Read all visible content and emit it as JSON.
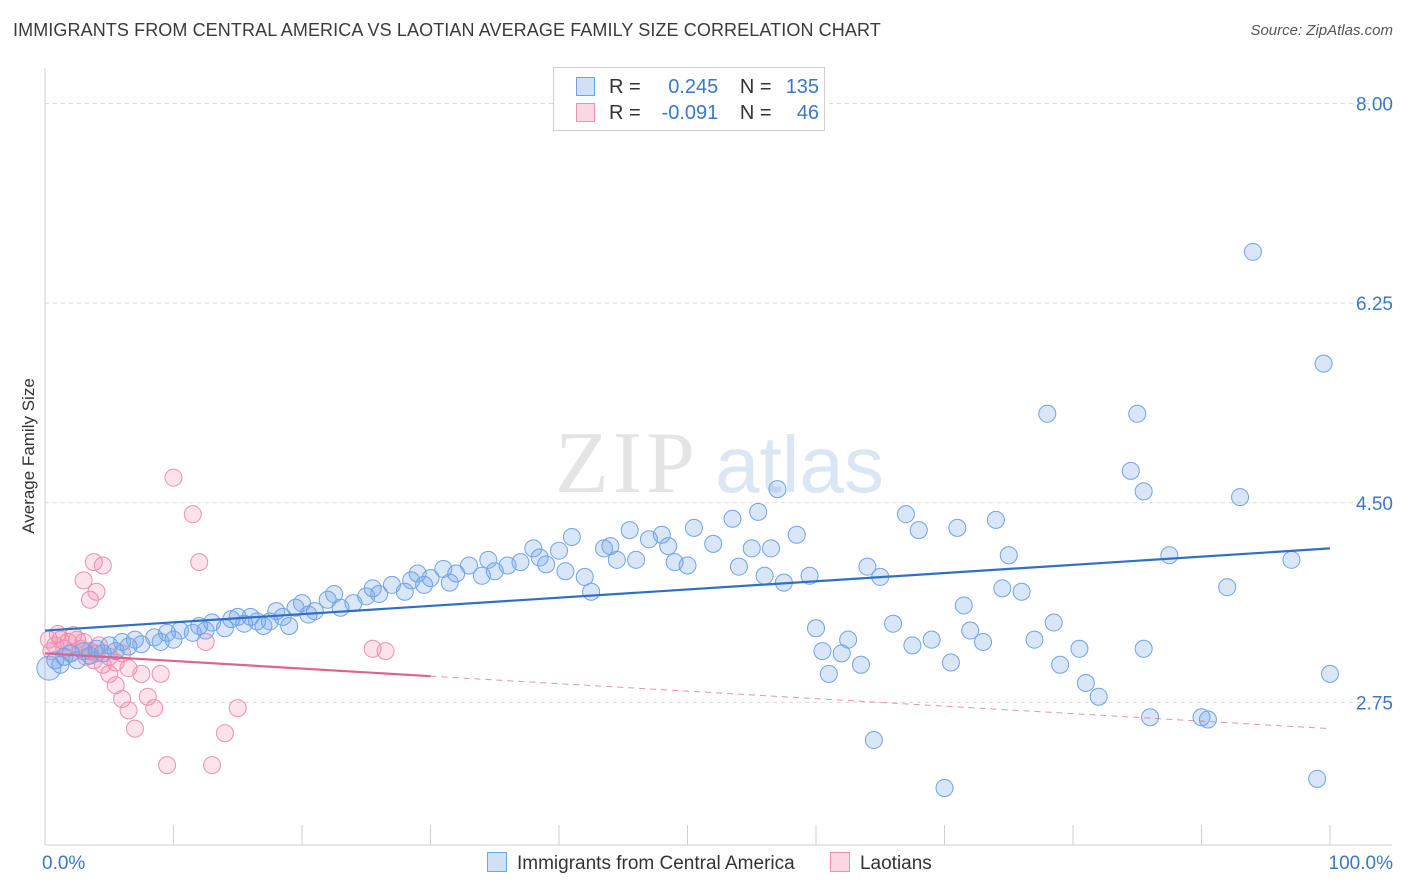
{
  "header": {
    "title": "IMMIGRANTS FROM CENTRAL AMERICA VS LAOTIAN AVERAGE FAMILY SIZE CORRELATION CHART",
    "source": "Source: ZipAtlas.com"
  },
  "watermark": {
    "zip": "ZIP",
    "atlas": "atlas"
  },
  "legend": {
    "rows": [
      {
        "r_label": "R =",
        "r_value": "0.245",
        "n_label": "N =",
        "n_value": "135",
        "color": "#6fa3e6"
      },
      {
        "r_label": "R =",
        "r_value": "-0.091",
        "n_label": "N =",
        "n_value": "46",
        "color": "#f08fb0"
      }
    ]
  },
  "bottom_legend": {
    "items": [
      {
        "label": "Immigrants from Central America",
        "color": "#6fa3e6"
      },
      {
        "label": "Laotians",
        "color": "#f08fb0"
      }
    ]
  },
  "colors": {
    "blue_fill": "rgba(120,165,230,0.28)",
    "blue_stroke": "#6fa3e6",
    "blue_line": "#2f6fc6",
    "pink_fill": "rgba(240,140,175,0.25)",
    "pink_stroke": "#f08fb0",
    "pink_line": "#e0628f",
    "axis_text": "#3b78c4",
    "grid": "#d9d9d9"
  },
  "chart_data": {
    "type": "scatter",
    "title": "IMMIGRANTS FROM CENTRAL AMERICA VS LAOTIAN AVERAGE FAMILY SIZE CORRELATION CHART",
    "xlabel": "",
    "ylabel": "Average Family Size",
    "xlim": [
      0,
      100
    ],
    "ylim": [
      1.5,
      8.25
    ],
    "x_tick_labels": [
      "0.0%",
      "100.0%"
    ],
    "y_ticks": [
      2.75,
      4.5,
      6.25,
      8.0
    ],
    "y_tick_labels": [
      "2.75",
      "4.50",
      "6.25",
      "8.00"
    ],
    "grid": "horizontal dashed",
    "legend_position": "top-center",
    "series": [
      {
        "name": "Immigrants from Central America",
        "regression": {
          "x": [
            0,
            100
          ],
          "y": [
            3.38,
            4.1
          ]
        },
        "points": [
          [
            0.3,
            3.05
          ],
          [
            0.8,
            3.12
          ],
          [
            1.2,
            3.08
          ],
          [
            1.5,
            3.15
          ],
          [
            2.0,
            3.18
          ],
          [
            2.5,
            3.12
          ],
          [
            3.0,
            3.2
          ],
          [
            3.5,
            3.16
          ],
          [
            4.0,
            3.22
          ],
          [
            4.5,
            3.18
          ],
          [
            5.0,
            3.25
          ],
          [
            5.5,
            3.2
          ],
          [
            6.0,
            3.28
          ],
          [
            6.5,
            3.24
          ],
          [
            7.0,
            3.3
          ],
          [
            7.5,
            3.26
          ],
          [
            8.5,
            3.32
          ],
          [
            9.0,
            3.28
          ],
          [
            9.5,
            3.36
          ],
          [
            10.0,
            3.3
          ],
          [
            10.5,
            3.38
          ],
          [
            11.5,
            3.36
          ],
          [
            12.0,
            3.42
          ],
          [
            12.5,
            3.38
          ],
          [
            13.0,
            3.45
          ],
          [
            14.0,
            3.4
          ],
          [
            14.5,
            3.48
          ],
          [
            15.0,
            3.5
          ],
          [
            15.5,
            3.44
          ],
          [
            16.0,
            3.5
          ],
          [
            16.5,
            3.46
          ],
          [
            17.0,
            3.42
          ],
          [
            17.5,
            3.46
          ],
          [
            18.0,
            3.55
          ],
          [
            18.5,
            3.5
          ],
          [
            19.0,
            3.42
          ],
          [
            19.5,
            3.58
          ],
          [
            20.0,
            3.62
          ],
          [
            20.5,
            3.52
          ],
          [
            21.0,
            3.55
          ],
          [
            22.0,
            3.65
          ],
          [
            22.5,
            3.7
          ],
          [
            23.0,
            3.58
          ],
          [
            24.0,
            3.62
          ],
          [
            25.0,
            3.68
          ],
          [
            25.5,
            3.75
          ],
          [
            26.0,
            3.7
          ],
          [
            27.0,
            3.78
          ],
          [
            28.0,
            3.72
          ],
          [
            28.5,
            3.82
          ],
          [
            29.0,
            3.88
          ],
          [
            29.5,
            3.78
          ],
          [
            30.0,
            3.84
          ],
          [
            31.0,
            3.92
          ],
          [
            31.5,
            3.8
          ],
          [
            32.0,
            3.88
          ],
          [
            33.0,
            3.95
          ],
          [
            34.0,
            3.86
          ],
          [
            34.5,
            4.0
          ],
          [
            35.0,
            3.9
          ],
          [
            36.0,
            3.95
          ],
          [
            37.0,
            3.98
          ],
          [
            38.0,
            4.1
          ],
          [
            38.5,
            4.02
          ],
          [
            39.0,
            3.96
          ],
          [
            40.0,
            4.08
          ],
          [
            40.5,
            3.9
          ],
          [
            41.0,
            4.2
          ],
          [
            42.0,
            3.85
          ],
          [
            42.5,
            3.72
          ],
          [
            43.5,
            4.1
          ],
          [
            44.0,
            4.12
          ],
          [
            44.5,
            4.0
          ],
          [
            45.5,
            4.26
          ],
          [
            46.0,
            4.0
          ],
          [
            47.0,
            4.18
          ],
          [
            48.0,
            4.22
          ],
          [
            48.5,
            4.12
          ],
          [
            49.0,
            3.98
          ],
          [
            50.0,
            3.95
          ],
          [
            50.5,
            4.28
          ],
          [
            52.0,
            4.14
          ],
          [
            53.5,
            4.36
          ],
          [
            54.0,
            3.94
          ],
          [
            55.0,
            4.1
          ],
          [
            56.0,
            3.86
          ],
          [
            56.5,
            4.1
          ],
          [
            57.5,
            3.8
          ],
          [
            58.5,
            4.22
          ],
          [
            59.5,
            3.86
          ],
          [
            60.0,
            3.4
          ],
          [
            60.5,
            3.2
          ],
          [
            62.0,
            3.18
          ],
          [
            62.5,
            3.3
          ],
          [
            63.5,
            3.08
          ],
          [
            64.0,
            3.94
          ],
          [
            65.0,
            3.85
          ],
          [
            66.0,
            3.44
          ],
          [
            67.5,
            3.25
          ],
          [
            68.0,
            4.26
          ],
          [
            69.0,
            3.3
          ],
          [
            70.0,
            2.0
          ],
          [
            70.5,
            3.1
          ],
          [
            71.0,
            4.28
          ],
          [
            71.5,
            3.6
          ],
          [
            72.0,
            3.38
          ],
          [
            73.0,
            3.28
          ],
          [
            74.5,
            3.75
          ],
          [
            75.0,
            4.04
          ],
          [
            76.0,
            3.72
          ],
          [
            77.0,
            3.3
          ],
          [
            78.0,
            5.28
          ],
          [
            78.5,
            3.45
          ],
          [
            79.0,
            3.08
          ],
          [
            80.5,
            3.22
          ],
          [
            81.0,
            2.92
          ],
          [
            82.0,
            2.8
          ],
          [
            85.0,
            5.28
          ],
          [
            85.5,
            3.22
          ],
          [
            86.0,
            2.62
          ],
          [
            87.5,
            4.04
          ],
          [
            90.0,
            2.62
          ],
          [
            92.0,
            3.76
          ],
          [
            94.0,
            6.7
          ],
          [
            99.5,
            5.72
          ],
          [
            100.0,
            3.0
          ],
          [
            57.0,
            4.62
          ],
          [
            64.5,
            2.42
          ],
          [
            99.0,
            2.08
          ],
          [
            61.0,
            3.0
          ],
          [
            55.5,
            4.42
          ],
          [
            67.0,
            4.4
          ],
          [
            74.0,
            4.35
          ],
          [
            84.5,
            4.78
          ],
          [
            97.0,
            4.0
          ],
          [
            90.5,
            2.6
          ],
          [
            93.0,
            4.55
          ],
          [
            85.5,
            4.6
          ]
        ]
      },
      {
        "name": "Laotians",
        "regression": {
          "x": [
            0,
            30
          ],
          "y": [
            3.18,
            2.98
          ],
          "dashed_to": [
            100,
            2.52
          ]
        },
        "points": [
          [
            0.3,
            3.3
          ],
          [
            0.5,
            3.2
          ],
          [
            0.8,
            3.25
          ],
          [
            1.0,
            3.35
          ],
          [
            1.2,
            3.3
          ],
          [
            1.5,
            3.22
          ],
          [
            1.8,
            3.28
          ],
          [
            2.0,
            3.18
          ],
          [
            2.2,
            3.34
          ],
          [
            2.5,
            3.3
          ],
          [
            2.8,
            3.22
          ],
          [
            3.0,
            3.28
          ],
          [
            3.2,
            3.15
          ],
          [
            3.5,
            3.2
          ],
          [
            3.8,
            3.12
          ],
          [
            4.0,
            3.18
          ],
          [
            4.2,
            3.25
          ],
          [
            4.5,
            3.08
          ],
          [
            5.0,
            3.15
          ],
          [
            5.5,
            3.1
          ],
          [
            6.0,
            3.18
          ],
          [
            6.5,
            3.05
          ],
          [
            3.0,
            3.82
          ],
          [
            3.5,
            3.65
          ],
          [
            3.8,
            3.98
          ],
          [
            4.0,
            3.72
          ],
          [
            4.5,
            3.95
          ],
          [
            5.0,
            3.0
          ],
          [
            5.5,
            2.9
          ],
          [
            6.0,
            2.78
          ],
          [
            6.5,
            2.68
          ],
          [
            7.0,
            2.52
          ],
          [
            7.5,
            3.0
          ],
          [
            8.0,
            2.8
          ],
          [
            8.5,
            2.7
          ],
          [
            9.0,
            3.0
          ],
          [
            9.5,
            2.2
          ],
          [
            10.0,
            4.72
          ],
          [
            11.5,
            4.4
          ],
          [
            12.0,
            3.98
          ],
          [
            13.0,
            2.2
          ],
          [
            14.0,
            2.48
          ],
          [
            15.0,
            2.7
          ],
          [
            25.5,
            3.22
          ],
          [
            26.5,
            3.2
          ],
          [
            12.5,
            3.28
          ]
        ]
      }
    ]
  }
}
